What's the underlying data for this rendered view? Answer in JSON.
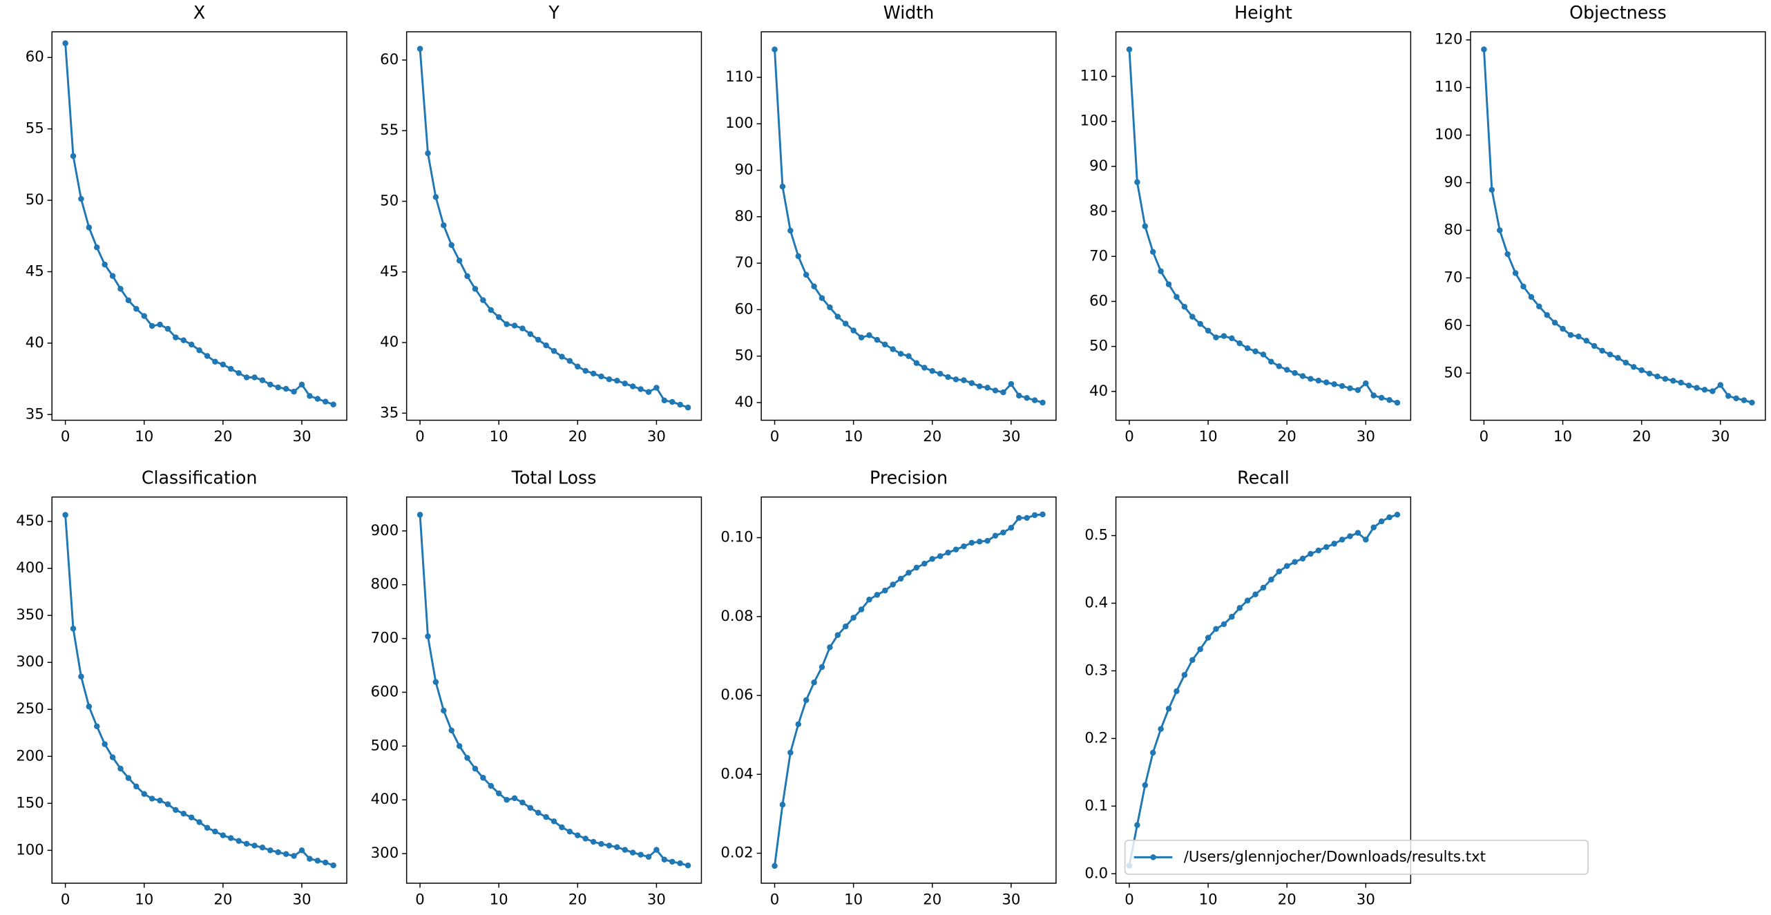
{
  "chart_data": [
    {
      "type": "line",
      "title": "X",
      "xlim": [
        -1.7,
        35.7
      ],
      "xticks": [
        0,
        10,
        20,
        30
      ],
      "ylim": [
        34.6,
        61.8
      ],
      "yticks": [
        35,
        40,
        45,
        50,
        55,
        60
      ],
      "x": [
        0,
        1,
        2,
        3,
        4,
        5,
        6,
        7,
        8,
        9,
        10,
        11,
        12,
        13,
        14,
        15,
        16,
        17,
        18,
        19,
        20,
        21,
        22,
        23,
        24,
        25,
        26,
        27,
        28,
        29,
        30,
        31,
        32,
        33,
        34
      ],
      "series": [
        {
          "color": "#1f77b4",
          "values": [
            61.0,
            53.1,
            50.1,
            48.1,
            46.7,
            45.5,
            44.7,
            43.8,
            43.0,
            42.4,
            41.9,
            41.2,
            41.3,
            41.0,
            40.4,
            40.2,
            39.9,
            39.5,
            39.1,
            38.7,
            38.5,
            38.2,
            37.9,
            37.6,
            37.6,
            37.4,
            37.1,
            36.9,
            36.8,
            36.6,
            37.1,
            36.3,
            36.1,
            35.9,
            35.7
          ]
        }
      ]
    },
    {
      "type": "line",
      "title": "Y",
      "xlim": [
        -1.7,
        35.7
      ],
      "xticks": [
        0,
        10,
        20,
        30
      ],
      "ylim": [
        34.5,
        62
      ],
      "yticks": [
        35,
        40,
        45,
        50,
        55,
        60
      ],
      "x": [
        0,
        1,
        2,
        3,
        4,
        5,
        6,
        7,
        8,
        9,
        10,
        11,
        12,
        13,
        14,
        15,
        16,
        17,
        18,
        19,
        20,
        21,
        22,
        23,
        24,
        25,
        26,
        27,
        28,
        29,
        30,
        31,
        32,
        33,
        34
      ],
      "series": [
        {
          "color": "#1f77b4",
          "values": [
            60.8,
            53.4,
            50.3,
            48.3,
            46.9,
            45.8,
            44.7,
            43.8,
            43.0,
            42.3,
            41.8,
            41.3,
            41.2,
            41.0,
            40.6,
            40.2,
            39.8,
            39.4,
            39.0,
            38.7,
            38.3,
            38.0,
            37.8,
            37.6,
            37.4,
            37.3,
            37.1,
            36.9,
            36.7,
            36.5,
            36.8,
            35.9,
            35.8,
            35.6,
            35.4
          ]
        }
      ]
    },
    {
      "type": "line",
      "title": "Width",
      "xlim": [
        -1.7,
        35.7
      ],
      "xticks": [
        0,
        10,
        20,
        30
      ],
      "ylim": [
        36.2,
        119.8
      ],
      "yticks": [
        40,
        50,
        60,
        70,
        80,
        90,
        100,
        110
      ],
      "x": [
        0,
        1,
        2,
        3,
        4,
        5,
        6,
        7,
        8,
        9,
        10,
        11,
        12,
        13,
        14,
        15,
        16,
        17,
        18,
        19,
        20,
        21,
        22,
        23,
        24,
        25,
        26,
        27,
        28,
        29,
        30,
        31,
        32,
        33,
        34
      ],
      "series": [
        {
          "color": "#1f77b4",
          "values": [
            116,
            86.5,
            77,
            71.5,
            67.5,
            65,
            62.5,
            60.5,
            58.5,
            57,
            55.5,
            54,
            54.5,
            53.5,
            52.5,
            51.5,
            50.5,
            50,
            48.5,
            47.5,
            46.8,
            46.2,
            45.5,
            45,
            44.8,
            44.2,
            43.5,
            43.2,
            42.6,
            42.2,
            44,
            41.5,
            41,
            40.5,
            40
          ]
        }
      ]
    },
    {
      "type": "line",
      "title": "Height",
      "xlim": [
        -1.7,
        35.7
      ],
      "xticks": [
        0,
        10,
        20,
        30
      ],
      "ylim": [
        33.6,
        119.9
      ],
      "yticks": [
        40,
        50,
        60,
        70,
        80,
        90,
        100,
        110
      ],
      "x": [
        0,
        1,
        2,
        3,
        4,
        5,
        6,
        7,
        8,
        9,
        10,
        11,
        12,
        13,
        14,
        15,
        16,
        17,
        18,
        19,
        20,
        21,
        22,
        23,
        24,
        25,
        26,
        27,
        28,
        29,
        30,
        31,
        32,
        33,
        34
      ],
      "series": [
        {
          "color": "#1f77b4",
          "values": [
            116,
            86.5,
            76.7,
            71,
            66.7,
            63.8,
            61,
            58.8,
            56.6,
            55,
            53.5,
            52,
            52.3,
            51.8,
            50.7,
            49.6,
            48.9,
            48.2,
            46.6,
            45.6,
            44.8,
            44.1,
            43.4,
            42.8,
            42.4,
            42,
            41.6,
            41.2,
            40.7,
            40.3,
            41.8,
            39.1,
            38.6,
            38.1,
            37.5
          ]
        }
      ]
    },
    {
      "type": "line",
      "title": "Objectness",
      "xlim": [
        -1.7,
        35.7
      ],
      "xticks": [
        0,
        10,
        20,
        30
      ],
      "ylim": [
        40.1,
        121.7
      ],
      "yticks": [
        50,
        60,
        70,
        80,
        90,
        100,
        110,
        120
      ],
      "x": [
        0,
        1,
        2,
        3,
        4,
        5,
        6,
        7,
        8,
        9,
        10,
        11,
        12,
        13,
        14,
        15,
        16,
        17,
        18,
        19,
        20,
        21,
        22,
        23,
        24,
        25,
        26,
        27,
        28,
        29,
        30,
        31,
        32,
        33,
        34
      ],
      "series": [
        {
          "color": "#1f77b4",
          "values": [
            118,
            88.5,
            80,
            75,
            71,
            68.2,
            66,
            64,
            62.2,
            60.6,
            59.3,
            58,
            57.7,
            56.8,
            55.7,
            54.7,
            53.9,
            53.2,
            52.2,
            51.3,
            50.6,
            49.9,
            49.3,
            48.8,
            48.4,
            48,
            47.4,
            46.9,
            46.5,
            46.2,
            47.5,
            45.2,
            44.7,
            44.3,
            43.8
          ]
        }
      ]
    },
    {
      "type": "line",
      "title": "Classification",
      "xlim": [
        -1.7,
        35.7
      ],
      "xticks": [
        0,
        10,
        20,
        30
      ],
      "ylim": [
        65,
        476
      ],
      "yticks": [
        100,
        150,
        200,
        250,
        300,
        350,
        400,
        450
      ],
      "x": [
        0,
        1,
        2,
        3,
        4,
        5,
        6,
        7,
        8,
        9,
        10,
        11,
        12,
        13,
        14,
        15,
        16,
        17,
        18,
        19,
        20,
        21,
        22,
        23,
        24,
        25,
        26,
        27,
        28,
        29,
        30,
        31,
        32,
        33,
        34
      ],
      "series": [
        {
          "color": "#1f77b4",
          "values": [
            457,
            336,
            285,
            253,
            232,
            213,
            199,
            187,
            177,
            168,
            160,
            155,
            153,
            149,
            143,
            139,
            135,
            130,
            124,
            120,
            116,
            113,
            110,
            107,
            105,
            103,
            100,
            98,
            96,
            94,
            100,
            91,
            89,
            87,
            84
          ]
        }
      ]
    },
    {
      "type": "line",
      "title": "Total Loss",
      "xlim": [
        -1.7,
        35.7
      ],
      "xticks": [
        0,
        10,
        20,
        30
      ],
      "ylim": [
        245,
        963
      ],
      "yticks": [
        300,
        400,
        500,
        600,
        700,
        800,
        900
      ],
      "x": [
        0,
        1,
        2,
        3,
        4,
        5,
        6,
        7,
        8,
        9,
        10,
        11,
        12,
        13,
        14,
        15,
        16,
        17,
        18,
        19,
        20,
        21,
        22,
        23,
        24,
        25,
        26,
        27,
        28,
        29,
        30,
        31,
        32,
        33,
        34
      ],
      "series": [
        {
          "color": "#1f77b4",
          "values": [
            930,
            704,
            619,
            566,
            529,
            500,
            478,
            458,
            441,
            426,
            412,
            400,
            403,
            395,
            385,
            376,
            368,
            360,
            349,
            341,
            334,
            328,
            322,
            318,
            315,
            312,
            307,
            302,
            298,
            294,
            307,
            289,
            285,
            282,
            278
          ]
        }
      ]
    },
    {
      "type": "line",
      "title": "Precision",
      "xlim": [
        -1.7,
        35.7
      ],
      "xticks": [
        0,
        10,
        20,
        30
      ],
      "ylim": [
        0.0124,
        0.1103
      ],
      "yticks": [
        0.02,
        0.04,
        0.06,
        0.08,
        {
          "value": 0.1,
          "label": "0.10"
        }
      ],
      "x": [
        0,
        1,
        2,
        3,
        4,
        5,
        6,
        7,
        8,
        9,
        10,
        11,
        12,
        13,
        14,
        15,
        16,
        17,
        18,
        19,
        20,
        21,
        22,
        23,
        24,
        25,
        26,
        27,
        28,
        29,
        30,
        31,
        32,
        33,
        34
      ],
      "series": [
        {
          "color": "#1f77b4",
          "values": [
            0.0168,
            0.0323,
            0.0455,
            0.0527,
            0.0588,
            0.0633,
            0.0672,
            0.0722,
            0.0753,
            0.0775,
            0.0797,
            0.0818,
            0.0843,
            0.0855,
            0.0866,
            0.0881,
            0.0896,
            0.0911,
            0.0924,
            0.0934,
            0.0946,
            0.0953,
            0.0962,
            0.097,
            0.0978,
            0.0987,
            0.099,
            0.0992,
            0.1005,
            0.1013,
            0.1025,
            0.105,
            0.105,
            0.1057,
            0.1059
          ]
        }
      ]
    },
    {
      "type": "line",
      "title": "Recall",
      "xlim": [
        -1.7,
        35.7
      ],
      "xticks": [
        0,
        10,
        20,
        30
      ],
      "ylim": [
        -0.014,
        0.557
      ],
      "yticks": [
        {
          "value": 0,
          "label": "0.0"
        },
        0.1,
        0.2,
        0.3,
        0.4,
        0.5
      ],
      "legend": "lower left",
      "x": [
        0,
        1,
        2,
        3,
        4,
        5,
        6,
        7,
        8,
        9,
        10,
        11,
        12,
        13,
        14,
        15,
        16,
        17,
        18,
        19,
        20,
        21,
        22,
        23,
        24,
        25,
        26,
        27,
        28,
        29,
        30,
        31,
        32,
        33,
        34
      ],
      "series": [
        {
          "name": "/Users/glennjocher/Downloads/results.txt",
          "color": "#1f77b4",
          "values": [
            0.012,
            0.072,
            0.131,
            0.179,
            0.214,
            0.244,
            0.27,
            0.294,
            0.316,
            0.332,
            0.349,
            0.362,
            0.369,
            0.38,
            0.393,
            0.404,
            0.413,
            0.423,
            0.435,
            0.447,
            0.455,
            0.461,
            0.466,
            0.473,
            0.478,
            0.483,
            0.488,
            0.494,
            0.499,
            0.504,
            0.494,
            0.512,
            0.521,
            0.527,
            0.531
          ]
        }
      ]
    }
  ]
}
